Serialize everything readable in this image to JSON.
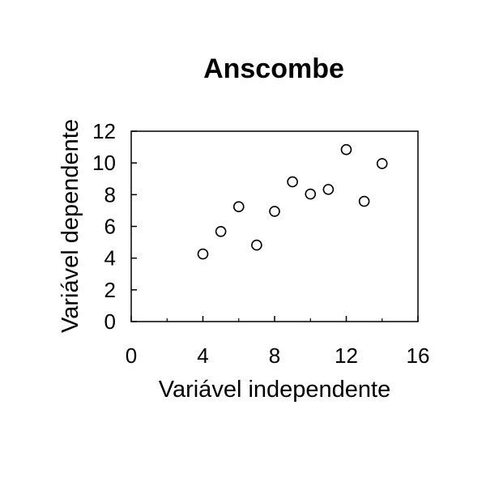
{
  "chart_data": {
    "type": "scatter",
    "title": "Anscombe",
    "xlabel": "Variável independente",
    "ylabel": "Variável dependente",
    "xlim": [
      0,
      16
    ],
    "ylim": [
      0,
      12
    ],
    "xticks": [
      0,
      4,
      8,
      12,
      16
    ],
    "xticks_minor": [
      2,
      6,
      10,
      14
    ],
    "yticks": [
      0,
      2,
      4,
      6,
      8,
      10,
      12
    ],
    "grid": false,
    "legend": "none",
    "marker": "open-circle",
    "color": "#000000",
    "points": [
      {
        "x": 4,
        "y": 4.26
      },
      {
        "x": 5,
        "y": 5.68
      },
      {
        "x": 6,
        "y": 7.24
      },
      {
        "x": 7,
        "y": 4.82
      },
      {
        "x": 8,
        "y": 6.95
      },
      {
        "x": 9,
        "y": 8.81
      },
      {
        "x": 10,
        "y": 8.04
      },
      {
        "x": 11,
        "y": 8.33
      },
      {
        "x": 12,
        "y": 10.84
      },
      {
        "x": 13,
        "y": 7.58
      },
      {
        "x": 14,
        "y": 9.96
      }
    ]
  }
}
